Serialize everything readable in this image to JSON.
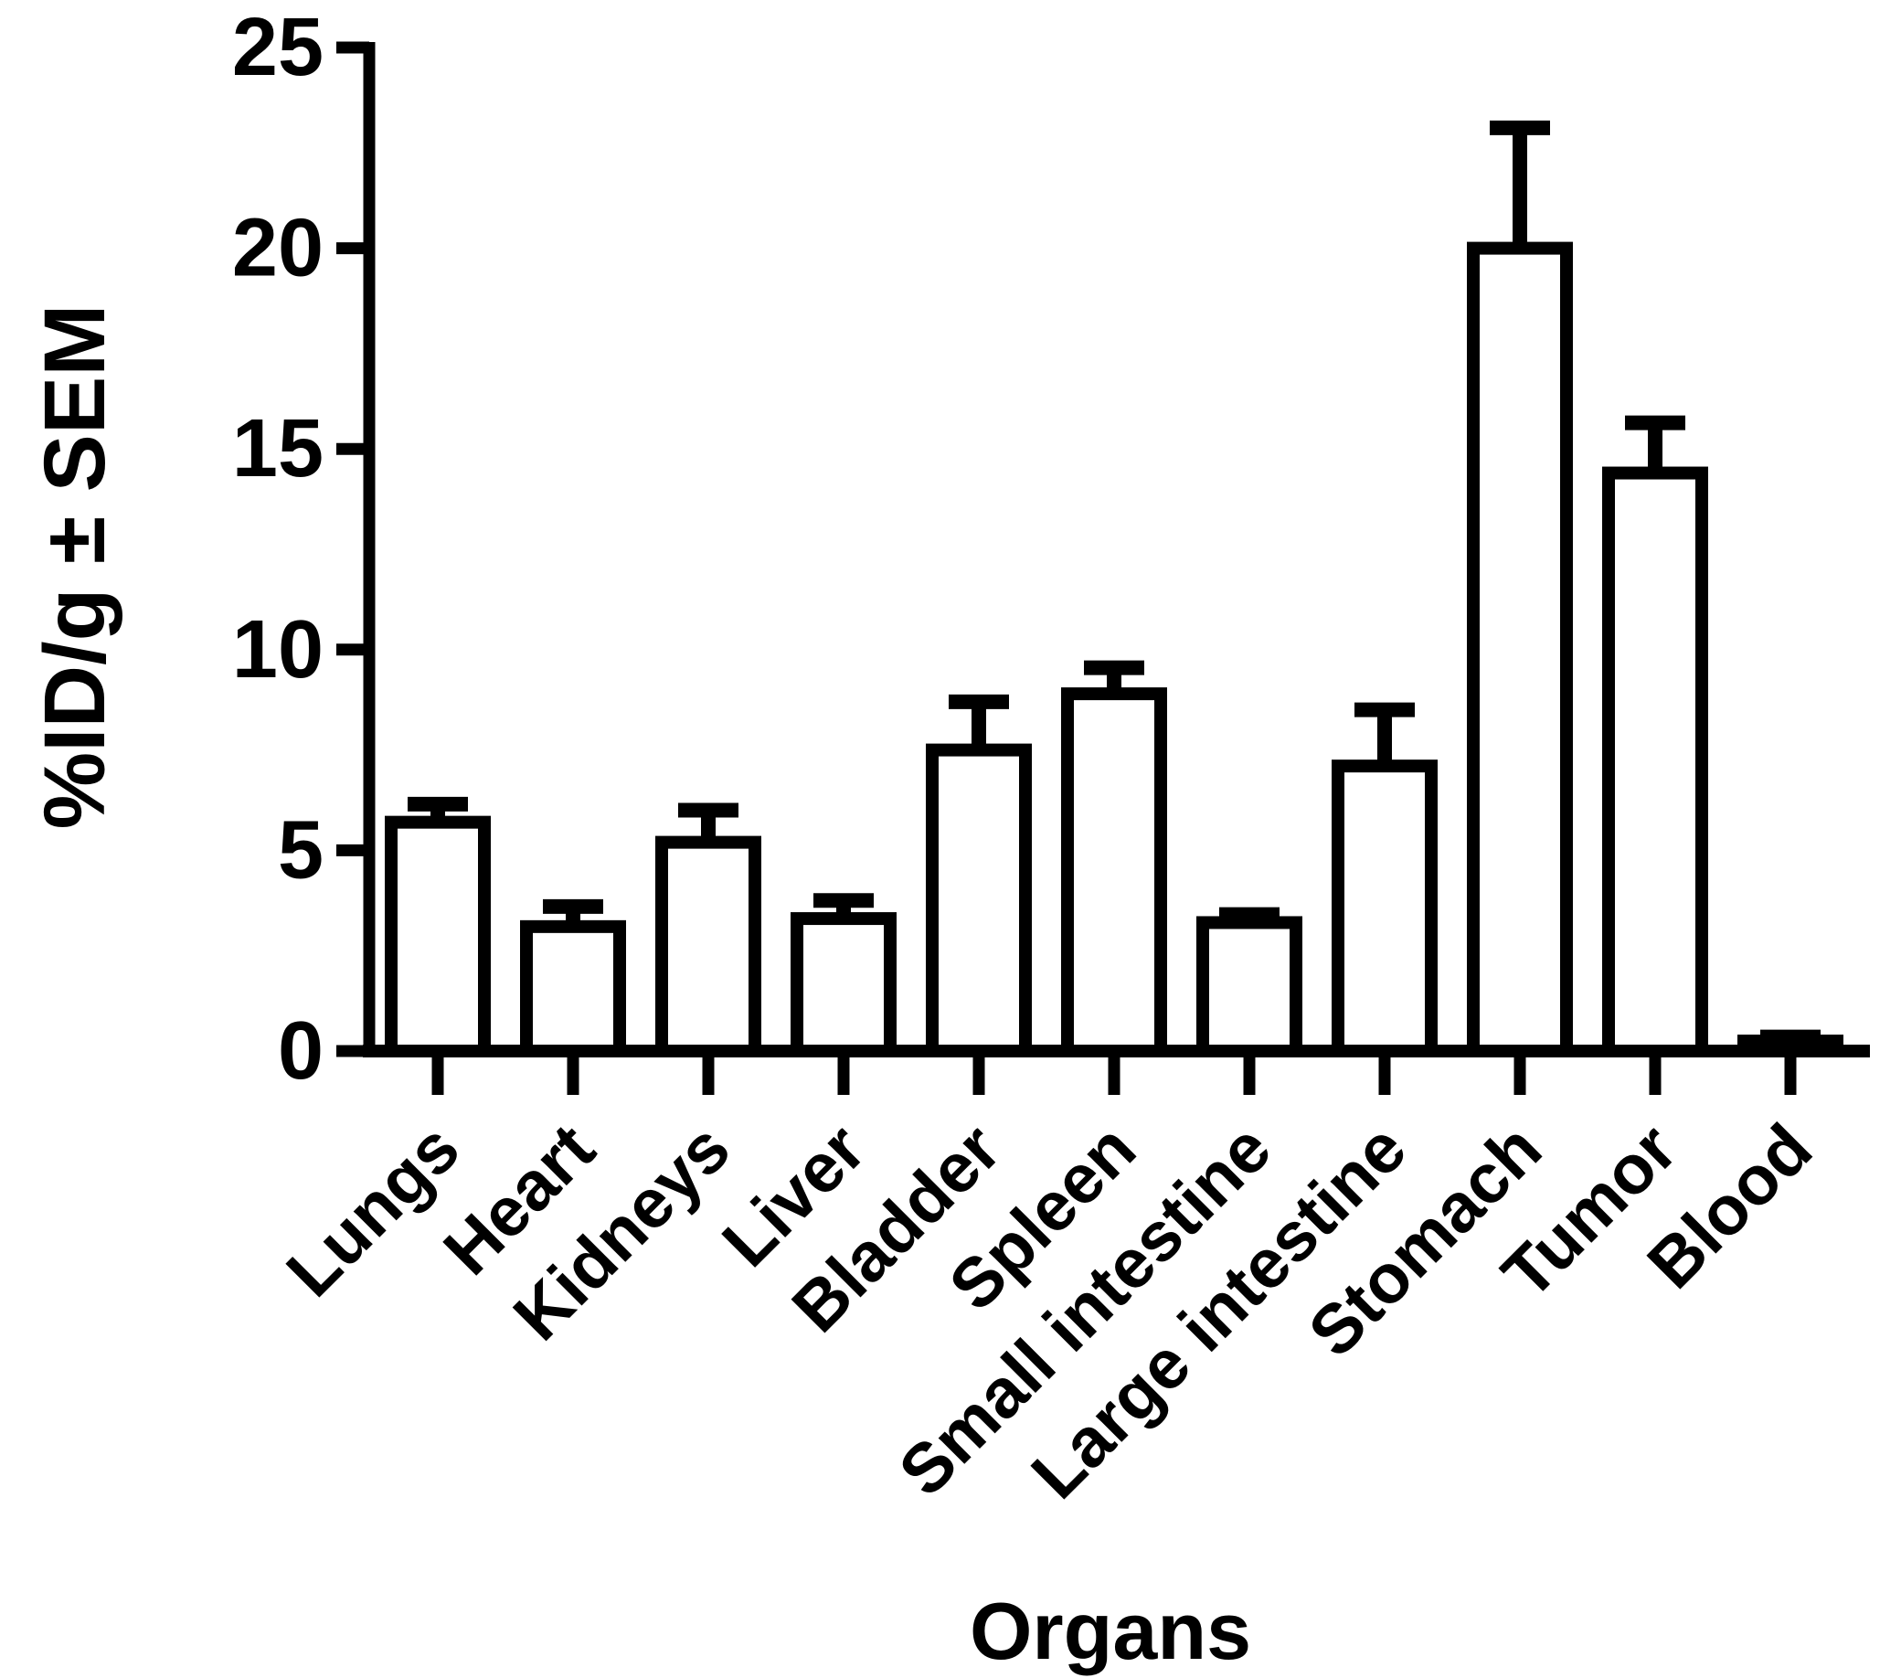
{
  "figure": {
    "background_color": "#ffffff",
    "ink_color": "#000000"
  },
  "chart_data": {
    "type": "bar",
    "title": "",
    "xlabel": "Organs",
    "ylabel": "%ID/g ± SEM",
    "categories": [
      "Lungs",
      "Heart",
      "Kidneys",
      "Liver",
      "Bladder",
      "Spleen",
      "Small intestine",
      "Large intestine",
      "Stomach",
      "Tumor",
      "Blood"
    ],
    "values": [
      5.7,
      3.1,
      5.2,
      3.3,
      7.5,
      8.9,
      3.2,
      7.1,
      20.0,
      14.4,
      0.25
    ],
    "errors_sem_upper": [
      0.45,
      0.5,
      0.8,
      0.45,
      1.2,
      0.65,
      0.2,
      1.4,
      3.0,
      1.25,
      0.1
    ],
    "ylim": [
      0,
      25
    ],
    "yticks": [
      0,
      5,
      10,
      15,
      20,
      25
    ],
    "bar_fill": "#ffffff",
    "bar_stroke": "#000000",
    "error_bar_style": "upper SEM whisker with cap",
    "x_label_rotation_deg": -45,
    "legend": "none",
    "grid": "off"
  }
}
